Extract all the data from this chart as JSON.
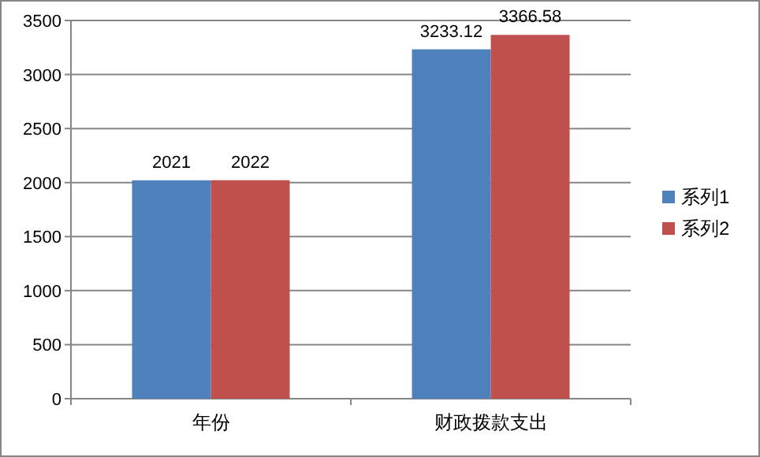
{
  "chart_data": {
    "type": "bar",
    "categories": [
      "年份",
      "财政拨款支出"
    ],
    "series": [
      {
        "name": "系列1",
        "color": "#4f81bd",
        "values": [
          2021,
          3233.12
        ]
      },
      {
        "name": "系列2",
        "color": "#c0504d",
        "values": [
          2022,
          3366.58
        ]
      }
    ],
    "ylim": [
      0,
      3500
    ],
    "yticks": [
      0,
      500,
      1000,
      1500,
      2000,
      2500,
      3000,
      3500
    ],
    "grid": "y",
    "legend": "right",
    "data_labels": true
  }
}
